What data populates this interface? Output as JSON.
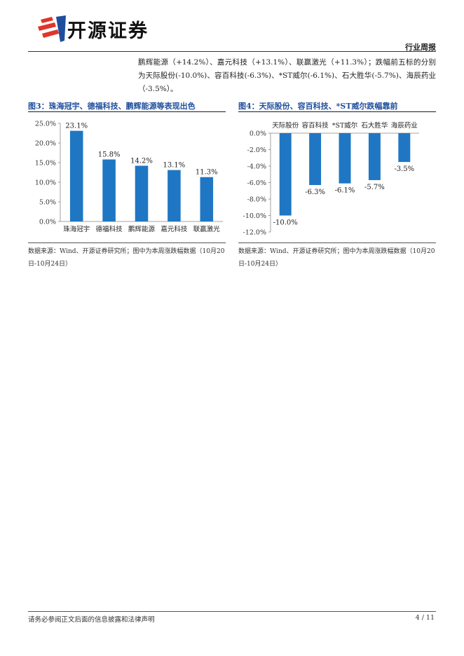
{
  "header": {
    "brand_name": "开源证券",
    "report_type": "行业周报",
    "logo_icon": "kaiyuan-logo-icon",
    "logo_color": "#e0352b"
  },
  "body": {
    "paragraph": "鹏辉能源（+14.2%）、嘉元科技（+13.1%）、联赢激光（+11.3%）；跌幅前五标的分别为天际股份(-10.0%)、容百科技(-6.3%)、*ST威尔(-6.1%)、石大胜华(-5.7%)、海辰药业（-3.5%）。"
  },
  "figure3": {
    "title": "图3：珠海冠宇、德福科技、鹏辉能源等表现出色",
    "source": "数据来源：Wind、开源证券研究所；图中为本周涨跌幅数据（10月20日-10月24日）"
  },
  "figure4": {
    "title": "图4：天际股份、容百科技、*ST威尔跌幅靠前",
    "source": "数据来源：Wind、开源证券研究所；图中为本周涨跌幅数据（10月20日-10月24日）"
  },
  "footer": {
    "disclaimer": "请务必参阅正文后面的信息披露和法律声明",
    "page": "4 / 11"
  },
  "chart_data": [
    {
      "type": "bar",
      "categories": [
        "珠海冠宇",
        "德福科技",
        "鹏辉能源",
        "嘉元科技",
        "联赢激光"
      ],
      "values": [
        23.1,
        15.8,
        14.2,
        13.1,
        11.3
      ],
      "data_labels": [
        "23.1%",
        "15.8%",
        "14.2%",
        "13.1%",
        "11.3%"
      ],
      "ylim": [
        0,
        25
      ],
      "yticks": [
        "0.0%",
        "5.0%",
        "10.0%",
        "15.0%",
        "20.0%",
        "25.0%"
      ],
      "color": "#1f77c4",
      "grid": false,
      "legend": "none"
    },
    {
      "type": "bar",
      "categories": [
        "天际股份",
        "容百科技",
        "*ST威尔",
        "石大胜华",
        "海辰药业"
      ],
      "values": [
        -10.0,
        -6.3,
        -6.1,
        -5.7,
        -3.5
      ],
      "data_labels": [
        "-10.0%",
        "-6.3%",
        "-6.1%",
        "-5.7%",
        "-3.5%"
      ],
      "ylim": [
        -12,
        0
      ],
      "yticks": [
        "-12.0%",
        "-10.0%",
        "-8.0%",
        "-6.0%",
        "-4.0%",
        "-2.0%",
        "0.0%"
      ],
      "color": "#1f77c4",
      "category_axis": "top",
      "grid": false,
      "legend": "none"
    }
  ]
}
